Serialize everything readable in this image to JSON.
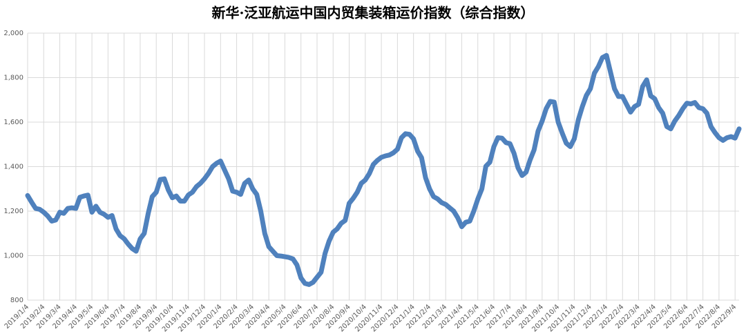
{
  "chart_data": {
    "type": "line",
    "title": "新华·泛亚航运中国内贸集装箱运价指数（综合指数）",
    "categories": [
      "2019/1/4",
      null,
      null,
      null,
      "2019/2/4",
      null,
      null,
      null,
      "2019/3/4",
      null,
      null,
      null,
      "2019/4/4",
      null,
      null,
      null,
      "2019/5/4",
      null,
      null,
      null,
      "2019/6/4",
      null,
      null,
      null,
      "2019/7/4",
      null,
      null,
      null,
      "2019/8/4",
      null,
      null,
      null,
      "2019/9/4",
      null,
      null,
      null,
      "2019/10/4",
      null,
      null,
      null,
      "2019/11/4",
      null,
      null,
      null,
      "2019/12/4",
      null,
      null,
      null,
      "2020/1/4",
      null,
      null,
      null,
      "2020/2/4",
      null,
      null,
      null,
      "2020/3/4",
      null,
      null,
      null,
      "2020/4/4",
      null,
      null,
      null,
      "2020/5/4",
      null,
      null,
      null,
      "2020/6/4",
      null,
      null,
      null,
      "2020/7/4",
      null,
      null,
      null,
      "2020/8/4",
      null,
      null,
      null,
      "2020/9/4",
      null,
      null,
      null,
      "2020/10/4",
      null,
      null,
      null,
      "2020/11/4",
      null,
      null,
      null,
      "2020/12/4",
      null,
      null,
      null,
      "2021/1/4",
      null,
      null,
      null,
      "2021/2/4",
      null,
      null,
      null,
      "2021/3/4",
      null,
      null,
      null,
      "2021/4/4",
      null,
      null,
      null,
      "2021/5/4",
      null,
      null,
      null,
      "2021/6/4",
      null,
      null,
      null,
      "2021/7/4",
      null,
      null,
      null,
      "2021/8/4",
      null,
      null,
      null,
      "2021/9/4",
      null,
      null,
      null,
      "2021/10/4",
      null,
      null,
      null,
      "2021/11/4",
      null,
      null,
      null,
      "2021/12/4",
      null,
      null,
      null,
      "2022/1/4",
      null,
      null,
      null,
      "2022/2/4",
      null,
      null,
      null,
      "2022/3/4",
      null,
      null,
      null,
      "2022/4/4",
      null,
      null,
      null,
      "2022/5/4",
      null,
      null,
      null,
      "2022/6/4",
      null,
      null,
      null,
      "2022/7/4",
      null,
      null,
      null,
      "2022/8/4",
      null,
      null,
      null,
      "2022/9/4",
      null
    ],
    "series": [
      {
        "color": "#4f81bd",
        "values": [
          1270,
          1240,
          1212,
          1208,
          1195,
          1178,
          1155,
          1160,
          1195,
          1190,
          1212,
          1215,
          1212,
          1262,
          1268,
          1272,
          1195,
          1222,
          1195,
          1186,
          1172,
          1180,
          1120,
          1090,
          1076,
          1052,
          1032,
          1020,
          1075,
          1100,
          1190,
          1265,
          1285,
          1342,
          1345,
          1295,
          1260,
          1268,
          1245,
          1245,
          1273,
          1285,
          1310,
          1325,
          1345,
          1370,
          1400,
          1415,
          1425,
          1385,
          1345,
          1290,
          1285,
          1275,
          1325,
          1340,
          1300,
          1275,
          1200,
          1100,
          1040,
          1020,
          1000,
          998,
          995,
          992,
          985,
          958,
          900,
          875,
          870,
          880,
          903,
          925,
          1010,
          1065,
          1105,
          1120,
          1145,
          1158,
          1235,
          1258,
          1285,
          1325,
          1340,
          1368,
          1410,
          1428,
          1442,
          1448,
          1452,
          1462,
          1478,
          1530,
          1548,
          1545,
          1525,
          1470,
          1440,
          1350,
          1300,
          1265,
          1255,
          1238,
          1230,
          1215,
          1200,
          1170,
          1130,
          1150,
          1155,
          1200,
          1255,
          1300,
          1402,
          1420,
          1490,
          1530,
          1528,
          1508,
          1503,
          1460,
          1395,
          1360,
          1375,
          1430,
          1475,
          1560,
          1605,
          1660,
          1693,
          1690,
          1600,
          1550,
          1505,
          1490,
          1525,
          1610,
          1670,
          1720,
          1750,
          1820,
          1850,
          1890,
          1900,
          1825,
          1750,
          1715,
          1715,
          1680,
          1645,
          1670,
          1680,
          1760,
          1790,
          1718,
          1705,
          1665,
          1640,
          1580,
          1570,
          1605,
          1630,
          1660,
          1685,
          1682,
          1688,
          1665,
          1660,
          1640,
          1580,
          1553,
          1530,
          1518,
          1530,
          1535,
          1528,
          1570
        ]
      }
    ],
    "ylim": [
      800,
      2000
    ],
    "yticks": [
      800,
      {
        "value": 1000,
        "label": "1,000"
      },
      {
        "value": 1200,
        "label": "1,200"
      },
      {
        "value": 1400,
        "label": "1,400"
      },
      {
        "value": 1600,
        "label": "1,600"
      },
      {
        "value": 1800,
        "label": "1,800"
      },
      {
        "value": 2000,
        "label": "2,000"
      }
    ],
    "grid": true
  }
}
